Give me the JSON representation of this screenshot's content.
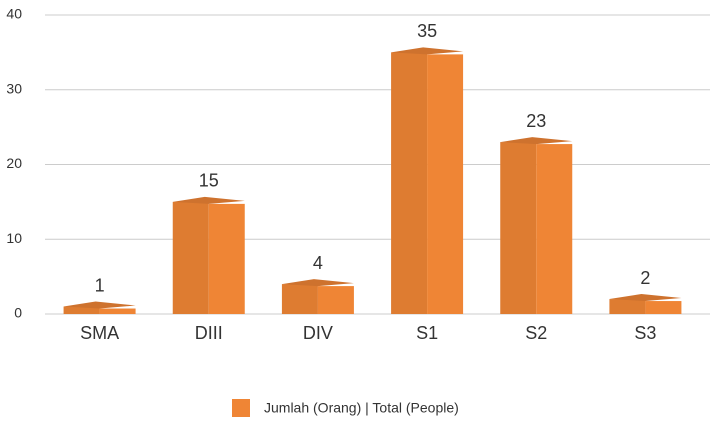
{
  "chart_data": {
    "type": "bar3d",
    "categories": [
      "SMA",
      "DIII",
      "DIV",
      "S1",
      "S2",
      "S3"
    ],
    "series": [
      {
        "name": "Jumlah (Orang) | Total (People)",
        "color": "#ef8535",
        "values": [
          1,
          15,
          4,
          35,
          23,
          2
        ]
      }
    ],
    "ylim": [
      0,
      40
    ],
    "yticks": [
      0,
      10,
      20,
      30,
      40
    ],
    "grid": true,
    "legend": "bottom"
  }
}
